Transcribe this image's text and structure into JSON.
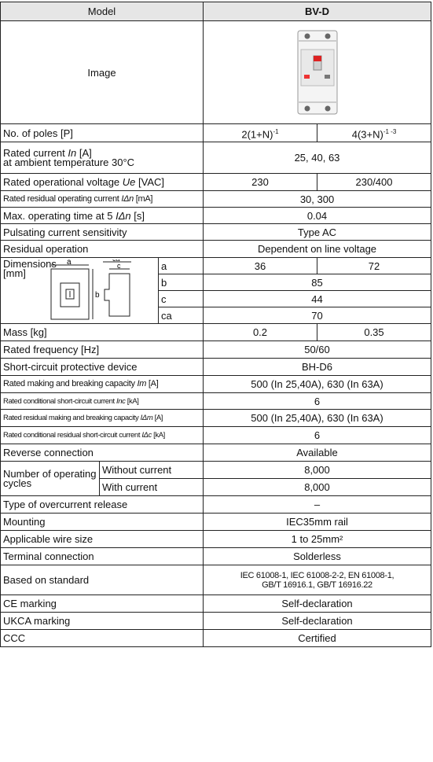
{
  "header": {
    "label": "Model",
    "value": "BV-D"
  },
  "image_label": "Image",
  "rows": {
    "poles": {
      "label": "No. of poles [P]",
      "v1": "2(1+N)",
      "v1_sup": "-1",
      "v2": "4(3+N)",
      "v2_sup": "-1 -3"
    },
    "rated_current": {
      "label_line1": "Rated current",
      "sym": "In",
      "label_unit": "[A]",
      "label_line2": "at ambient temperature 30°C",
      "value": "25, 40, 63"
    },
    "voltage": {
      "label": "Rated operational voltage",
      "sym": "Ue",
      "unit": "[VAC]",
      "v1": "230",
      "v2": "230/400"
    },
    "residual_current": {
      "label": "Rated residual operating current",
      "sym": "IΔn",
      "unit": "[mA]",
      "value": "30, 300"
    },
    "max_time": {
      "label_a": "Max. operating time at 5",
      "sym": "IΔn",
      "unit": "[s]",
      "value": "0.04"
    },
    "pulsating": {
      "label": "Pulsating current sensitivity",
      "value": "Type AC"
    },
    "residual_op": {
      "label": "Residual operation",
      "value": "Dependent on line voltage"
    },
    "dimensions": {
      "label": "Dimensions [mm]",
      "diagram_labels": {
        "a": "a",
        "ca": "ca",
        "c": "c",
        "b": "b"
      },
      "rows": [
        {
          "key": "a",
          "v1": "36",
          "v2": "72"
        },
        {
          "key": "b",
          "value": "85"
        },
        {
          "key": "c",
          "value": "44"
        },
        {
          "key": "ca",
          "value": "70"
        }
      ]
    },
    "mass": {
      "label": "Mass [kg]",
      "v1": "0.2",
      "v2": "0.35"
    },
    "frequency": {
      "label": "Rated frequency [Hz]",
      "value": "50/60"
    },
    "scpd": {
      "label": "Short-circuit protective device",
      "value": "BH-D6"
    },
    "making": {
      "label": "Rated making and breaking capacity",
      "sym": "Im",
      "unit": "[A]",
      "value": "500 (In 25,40A), 630 (In 63A)"
    },
    "cond_sc": {
      "label": "Rated conditional short-circuit current",
      "sym": "Inc",
      "unit": "[kA]",
      "value": "6"
    },
    "res_making": {
      "label": "Rated residual making and breaking capacity",
      "sym": "IΔm",
      "unit": "[A]",
      "value": "500 (In 25,40A), 630 (In 63A)"
    },
    "res_cond_sc": {
      "label": "Rated conditional residual short-circuit current",
      "sym": "IΔc",
      "unit": "[kA]",
      "value": "6"
    },
    "reverse": {
      "label": "Reverse connection",
      "value": "Available"
    },
    "cycles": {
      "label": "Number of operating cycles",
      "without_label": "Without current",
      "without_value": "8,000",
      "with_label": "With current",
      "with_value": "8,000"
    },
    "overcurrent": {
      "label": "Type of overcurrent release",
      "value": "–"
    },
    "mounting": {
      "label": "Mounting",
      "value": "IEC35mm rail"
    },
    "wire": {
      "label": "Applicable wire size",
      "value": "1 to 25mm²"
    },
    "terminal": {
      "label": "Terminal connection",
      "value": "Solderless"
    },
    "standard": {
      "label": "Based on standard",
      "value_line1": "IEC 61008-1, IEC 61008-2-2, EN 61008-1,",
      "value_line2": "GB/T 16916.1, GB/T 16916.22"
    },
    "ce": {
      "label": "CE marking",
      "value": "Self-declaration"
    },
    "ukca": {
      "label": "UKCA marking",
      "value": "Self-declaration"
    },
    "ccc": {
      "label": "CCC",
      "value": "Certified"
    }
  }
}
